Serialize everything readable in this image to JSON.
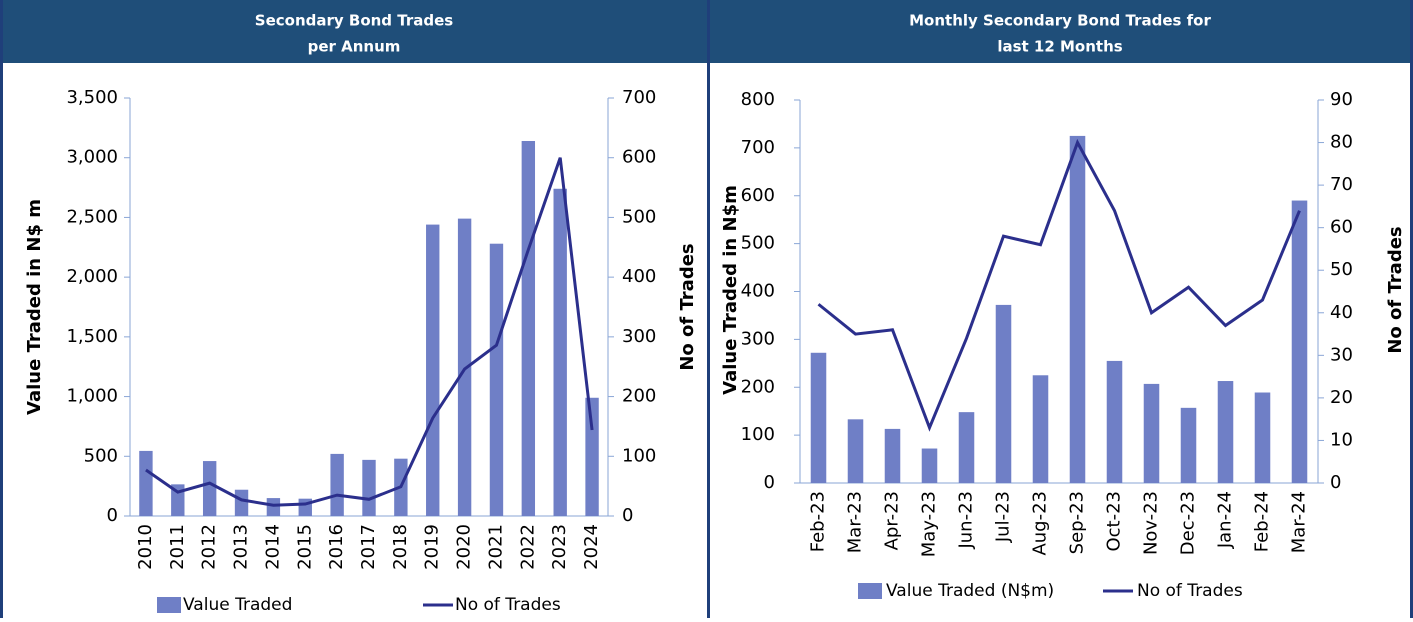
{
  "chart_data": [
    {
      "type": "bar",
      "title": [
        "Secondary Bond Trades",
        "per Annum"
      ],
      "y_label": "Value Traded in N$ m",
      "y2_label": "No of Trades",
      "categories": [
        "2010",
        "2011",
        "2012",
        "2013",
        "2014",
        "2015",
        "2016",
        "2017",
        "2018",
        "2019",
        "2020",
        "2021",
        "2022",
        "2023",
        "2024"
      ],
      "series": [
        {
          "name": "Value Traded",
          "type": "bar",
          "color": "#6f7fc6",
          "values": [
            545,
            265,
            460,
            220,
            150,
            145,
            520,
            470,
            480,
            2440,
            2490,
            2280,
            3140,
            2740,
            990
          ]
        },
        {
          "name": "No of Trades",
          "type": "line",
          "axis": "y2",
          "color": "#2b2f8c",
          "values": [
            77,
            40,
            55,
            27,
            18,
            20,
            35,
            28,
            49,
            164,
            246,
            286,
            446,
            600,
            144
          ]
        }
      ],
      "ylim": [
        0,
        3500
      ],
      "yticks": [
        0,
        500,
        {
          "value": 1000,
          "label": "1,000"
        },
        {
          "value": 1500,
          "label": "1,500"
        },
        {
          "value": 2000,
          "label": "2,000"
        },
        {
          "value": 2500,
          "label": "2,500"
        },
        {
          "value": 3000,
          "label": "3,000"
        },
        {
          "value": 3500,
          "label": "3,500"
        }
      ],
      "y2lim": [
        0,
        700
      ],
      "y2ticks": [
        0,
        100,
        200,
        300,
        400,
        500,
        600,
        700
      ],
      "grid": false
    },
    {
      "type": "bar",
      "title": [
        "Monthly Secondary Bond Trades for",
        "last 12 Months"
      ],
      "y_label": "Value Traded in N$m",
      "y2_label": "No of Trades",
      "categories": [
        "Feb-23",
        "Mar-23",
        "Apr-23",
        "May-23",
        "Jun-23",
        "Jul-23",
        "Aug-23",
        "Sep-23",
        "Oct-23",
        "Nov-23",
        "Dec-23",
        "Jan-24",
        "Feb-24",
        "Mar-24"
      ],
      "series": [
        {
          "name": "Value Traded (N$m)",
          "type": "bar",
          "color": "#6f7fc6",
          "values": [
            272,
            133,
            113,
            72,
            148,
            372,
            225,
            725,
            255,
            207,
            157,
            213,
            189,
            590
          ]
        },
        {
          "name": "No of Trades",
          "type": "line",
          "axis": "y2",
          "color": "#2b2f8c",
          "values": [
            42,
            35,
            36,
            13,
            34,
            58,
            56,
            80,
            64,
            40,
            46,
            37,
            43,
            64
          ]
        }
      ],
      "ylim": [
        0,
        800
      ],
      "yticks": [
        0,
        100,
        200,
        300,
        400,
        500,
        600,
        700,
        800
      ],
      "y2lim": [
        0,
        90
      ],
      "y2ticks": [
        0,
        10,
        20,
        30,
        40,
        50,
        60,
        70,
        80,
        90
      ],
      "grid": false
    }
  ]
}
